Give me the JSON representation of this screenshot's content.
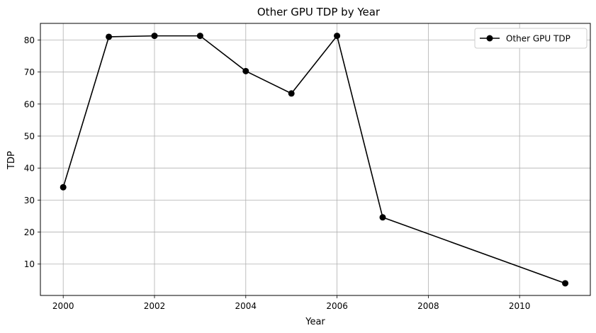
{
  "chart_data": {
    "type": "line",
    "title": "Other GPU TDP by Year",
    "xlabel": "Year",
    "ylabel": "TDP",
    "xlim": [
      1999.5,
      2011.55
    ],
    "ylim": [
      0.2,
      85.2
    ],
    "x_ticks": [
      2000,
      2002,
      2004,
      2006,
      2008,
      2010
    ],
    "y_ticks": [
      10,
      20,
      30,
      40,
      50,
      60,
      70,
      80
    ],
    "grid": true,
    "legend_position": "upper right",
    "series": [
      {
        "name": "Other GPU TDP",
        "color": "#000000",
        "marker": "circle",
        "x": [
          2000,
          2001,
          2002,
          2003,
          2004,
          2005,
          2006,
          2007,
          2011
        ],
        "y": [
          34,
          81,
          81.3,
          81.3,
          70.3,
          63.3,
          81.3,
          24.6,
          4
        ]
      }
    ]
  }
}
